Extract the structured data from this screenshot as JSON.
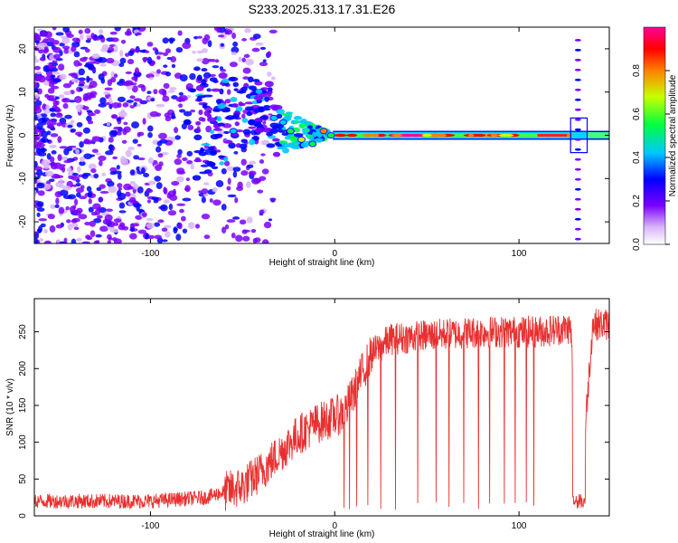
{
  "title": "S233.2025.313.17.31.E26",
  "chart_data": [
    {
      "type": "heatmap",
      "name": "spectrogram",
      "xlabel": "Height of straight line (km)",
      "ylabel": "Frequency (Hz)",
      "xlim": [
        -163,
        149
      ],
      "ylim": [
        -25,
        25
      ],
      "xticks": [
        -100,
        0,
        100
      ],
      "yticks": [
        -20,
        -10,
        0,
        10,
        20
      ],
      "colorbar": {
        "label": "Normalized spectral amplitude",
        "range": [
          0.0,
          1.0
        ],
        "ticks": [
          "0.0",
          "0.2",
          "0.4",
          "0.6",
          "0.8"
        ]
      },
      "features": [
        {
          "name": "scattered noise",
          "x_range": [
            -163,
            -60
          ],
          "freq_range": [
            -25,
            25
          ],
          "amplitude": 0.1
        },
        {
          "name": "converging signal",
          "x_range": [
            -60,
            -5
          ],
          "freq_range": [
            -5,
            15
          ],
          "amplitude": 0.3
        },
        {
          "name": "carrier line",
          "x_range": [
            0,
            149
          ],
          "freq": 0,
          "amplitude": 0.85
        },
        {
          "name": "sideband column",
          "x": 132,
          "freq_range": [
            -25,
            25
          ],
          "amplitude": 0.1
        }
      ]
    },
    {
      "type": "line",
      "name": "snr",
      "xlabel": "Height of straight line (km)",
      "ylabel": "SNR (10 * v/v)",
      "xlim": [
        -163,
        149
      ],
      "ylim": [
        0,
        295
      ],
      "xticks": [
        -100,
        0,
        100
      ],
      "yticks": [
        0,
        50,
        100,
        150,
        200,
        250
      ],
      "series": [
        {
          "name": "SNR",
          "color": "#e83030",
          "profile_x": [
            -163,
            -100,
            -70,
            -50,
            -40,
            -30,
            -20,
            -10,
            0,
            5,
            10,
            15,
            20,
            30,
            50,
            80,
            110,
            128,
            133,
            140,
            149
          ],
          "profile_y": [
            20,
            20,
            25,
            40,
            60,
            85,
            110,
            125,
            135,
            140,
            165,
            195,
            220,
            240,
            245,
            250,
            250,
            255,
            20,
            260,
            260
          ],
          "dropouts_x": [
            5,
            8,
            12,
            18,
            25,
            33,
            45,
            55,
            62,
            70,
            78,
            84,
            92,
            98,
            104,
            108
          ]
        }
      ]
    }
  ]
}
